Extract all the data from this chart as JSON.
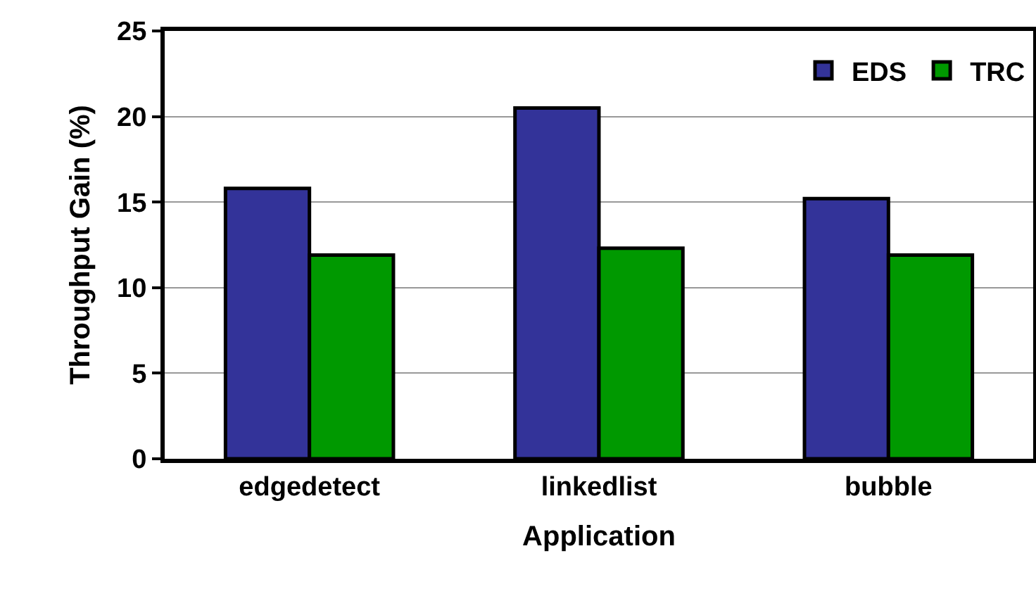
{
  "chart_data": {
    "type": "bar",
    "xlabel": "Application",
    "ylabel": "Throughput Gain (%)",
    "categories": [
      "edgedetect",
      "linkedlist",
      "bubble"
    ],
    "series": [
      {
        "name": "EDS",
        "color": "#333399",
        "values": [
          15.8,
          20.5,
          15.2
        ]
      },
      {
        "name": "TRC",
        "color": "#009900",
        "values": [
          11.9,
          12.3,
          11.9
        ]
      }
    ],
    "ylim": [
      0,
      25
    ],
    "yticks": [
      0,
      5,
      10,
      15,
      20,
      25
    ],
    "grid": "y",
    "legend": "top right"
  }
}
